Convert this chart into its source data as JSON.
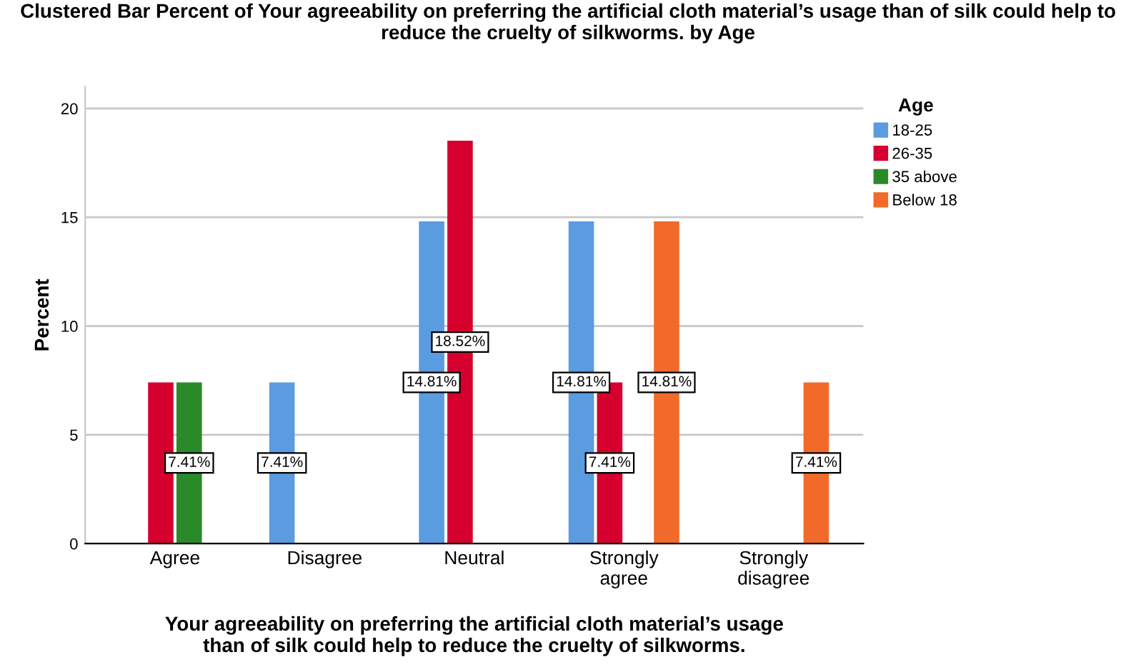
{
  "chart_data": {
    "type": "bar",
    "title": "Clustered Bar Percent of Your agreeability on preferring the artificial cloth material’s usage than of silk could help to reduce the cruelty of silkworms. by Age",
    "xlabel": "Your agreeability on preferring the artificial cloth material’s usage\nthan of silk could help to reduce the cruelty of silkworms.",
    "ylabel": "Percent",
    "legend_title": "Age",
    "categories": [
      "Agree",
      "Disagree",
      "Neutral",
      "Strongly\nagree",
      "Strongly\ndisagree"
    ],
    "series": [
      {
        "name": "18-25",
        "color": "#5b9be0",
        "values": [
          null,
          7.41,
          14.81,
          14.81,
          null
        ],
        "value_labels": [
          null,
          "7.41%",
          "14.81%",
          "14.81%",
          null
        ]
      },
      {
        "name": "26-35",
        "color": "#d6002e",
        "values": [
          7.41,
          null,
          18.52,
          7.41,
          null
        ],
        "value_labels": [
          null,
          null,
          "18.52%",
          "7.41%",
          null
        ]
      },
      {
        "name": "35 above",
        "color": "#2a8a2a",
        "values": [
          7.41,
          null,
          null,
          null,
          null
        ],
        "value_labels": [
          "7.41%",
          null,
          null,
          null,
          null
        ]
      },
      {
        "name": "Below 18",
        "color": "#f26a2a",
        "values": [
          null,
          null,
          null,
          14.81,
          7.41
        ],
        "value_labels": [
          null,
          null,
          null,
          "14.81%",
          "7.41%"
        ]
      }
    ],
    "ylim": [
      0,
      21
    ],
    "yticks": [
      0,
      5,
      10,
      15,
      20
    ],
    "grid": "y",
    "legend": "top right"
  }
}
